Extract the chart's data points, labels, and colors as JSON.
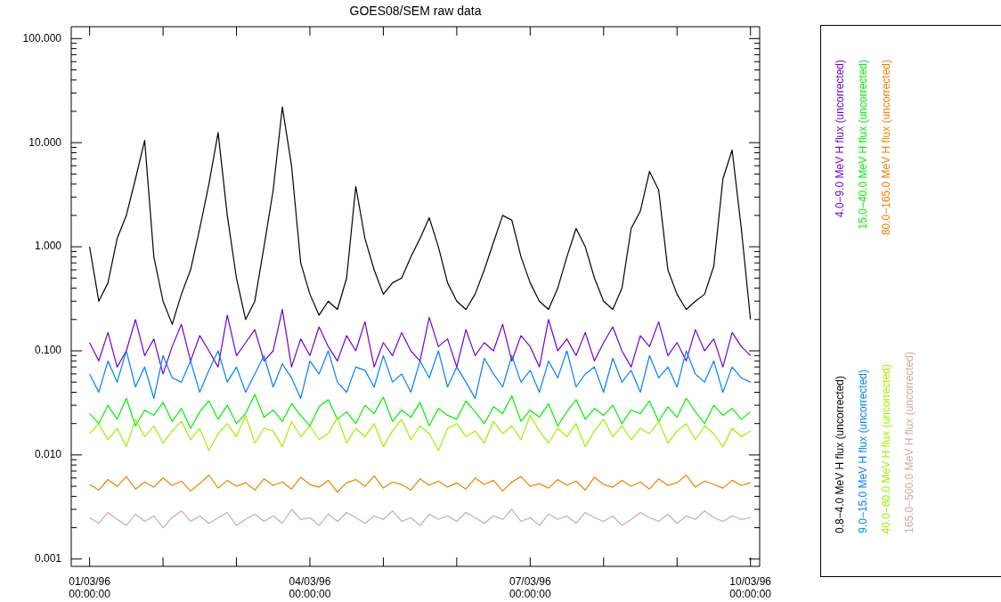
{
  "chart_data": {
    "type": "line",
    "title": "GOES08/SEM raw data",
    "legend": "right",
    "grid": false,
    "marker": "none",
    "line_style": "solid",
    "log": "y",
    "x": [
      "1996-03-01T00:00",
      "1996-03-01T03:00",
      "1996-03-01T06:00",
      "1996-03-01T09:00",
      "1996-03-01T12:00",
      "1996-03-01T15:00",
      "1996-03-01T18:00",
      "1996-03-01T21:00",
      "1996-03-02T00:00",
      "1996-03-02T03:00",
      "1996-03-02T06:00",
      "1996-03-02T09:00",
      "1996-03-02T12:00",
      "1996-03-02T15:00",
      "1996-03-02T18:00",
      "1996-03-02T21:00",
      "1996-03-03T00:00",
      "1996-03-03T03:00",
      "1996-03-03T06:00",
      "1996-03-03T09:00",
      "1996-03-03T12:00",
      "1996-03-03T15:00",
      "1996-03-03T18:00",
      "1996-03-03T21:00",
      "1996-03-04T00:00",
      "1996-03-04T03:00",
      "1996-03-04T06:00",
      "1996-03-04T09:00",
      "1996-03-04T12:00",
      "1996-03-04T15:00",
      "1996-03-04T18:00",
      "1996-03-04T21:00",
      "1996-03-05T00:00",
      "1996-03-05T03:00",
      "1996-03-05T06:00",
      "1996-03-05T09:00",
      "1996-03-05T12:00",
      "1996-03-05T15:00",
      "1996-03-05T18:00",
      "1996-03-05T21:00",
      "1996-03-06T00:00",
      "1996-03-06T03:00",
      "1996-03-06T06:00",
      "1996-03-06T09:00",
      "1996-03-06T12:00",
      "1996-03-06T15:00",
      "1996-03-06T18:00",
      "1996-03-06T21:00",
      "1996-03-07T00:00",
      "1996-03-07T03:00",
      "1996-03-07T06:00",
      "1996-03-07T09:00",
      "1996-03-07T12:00",
      "1996-03-07T15:00",
      "1996-03-07T18:00",
      "1996-03-07T21:00",
      "1996-03-08T00:00",
      "1996-03-08T03:00",
      "1996-03-08T06:00",
      "1996-03-08T09:00",
      "1996-03-08T12:00",
      "1996-03-08T15:00",
      "1996-03-08T18:00",
      "1996-03-08T21:00",
      "1996-03-09T00:00",
      "1996-03-09T03:00",
      "1996-03-09T06:00",
      "1996-03-09T09:00",
      "1996-03-09T12:00",
      "1996-03-09T15:00",
      "1996-03-09T18:00",
      "1996-03-09T21:00",
      "1996-03-10T00:00"
    ],
    "xlim": [
      "1996-02-29T18:00",
      "1996-03-10T03:00"
    ],
    "xticks": [
      {
        "value": "1996-03-01T00:00",
        "label": "01/03/96\n00:00:00"
      },
      {
        "value": "1996-03-02T00:00",
        "label": null
      },
      {
        "value": "1996-03-03T00:00",
        "label": null
      },
      {
        "value": "1996-03-04T00:00",
        "label": "04/03/96\n00:00:00"
      },
      {
        "value": "1996-03-05T00:00",
        "label": null
      },
      {
        "value": "1996-03-06T00:00",
        "label": null
      },
      {
        "value": "1996-03-07T00:00",
        "label": "07/03/96\n00:00:00"
      },
      {
        "value": "1996-03-08T00:00",
        "label": null
      },
      {
        "value": "1996-03-09T00:00",
        "label": null
      },
      {
        "value": "1996-03-10T00:00",
        "label": "10/03/96\n00:00:00"
      }
    ],
    "ylim": [
      0.00085,
      130
    ],
    "yticks": [
      {
        "value": 0.001,
        "label": "0.001"
      },
      {
        "value": 0.002,
        "label": null
      },
      {
        "value": 0.003,
        "label": null
      },
      {
        "value": 0.004,
        "label": null
      },
      {
        "value": 0.005,
        "label": null
      },
      {
        "value": 0.006,
        "label": null
      },
      {
        "value": 0.007,
        "label": null
      },
      {
        "value": 0.008,
        "label": null
      },
      {
        "value": 0.009,
        "label": null
      },
      {
        "value": 0.01,
        "label": "0.010"
      },
      {
        "value": 0.02,
        "label": null
      },
      {
        "value": 0.03,
        "label": null
      },
      {
        "value": 0.04,
        "label": null
      },
      {
        "value": 0.05,
        "label": null
      },
      {
        "value": 0.06,
        "label": null
      },
      {
        "value": 0.07,
        "label": null
      },
      {
        "value": 0.08,
        "label": null
      },
      {
        "value": 0.09,
        "label": null
      },
      {
        "value": 0.1,
        "label": "0.100"
      },
      {
        "value": 0.2,
        "label": null
      },
      {
        "value": 0.3,
        "label": null
      },
      {
        "value": 0.4,
        "label": null
      },
      {
        "value": 0.5,
        "label": null
      },
      {
        "value": 0.6,
        "label": null
      },
      {
        "value": 0.7,
        "label": null
      },
      {
        "value": 0.8,
        "label": null
      },
      {
        "value": 0.9,
        "label": null
      },
      {
        "value": 1,
        "label": "1.000"
      },
      {
        "value": 2,
        "label": null
      },
      {
        "value": 3,
        "label": null
      },
      {
        "value": 4,
        "label": null
      },
      {
        "value": 5,
        "label": null
      },
      {
        "value": 6,
        "label": null
      },
      {
        "value": 7,
        "label": null
      },
      {
        "value": 8,
        "label": null
      },
      {
        "value": 9,
        "label": null
      },
      {
        "value": 10,
        "label": "10.000"
      },
      {
        "value": 20,
        "label": null
      },
      {
        "value": 30,
        "label": null
      },
      {
        "value": 40,
        "label": null
      },
      {
        "value": 50,
        "label": null
      },
      {
        "value": 60,
        "label": null
      },
      {
        "value": 70,
        "label": null
      },
      {
        "value": 80,
        "label": null
      },
      {
        "value": 90,
        "label": null
      },
      {
        "value": 100,
        "label": "100.000"
      }
    ],
    "series": [
      {
        "name": "0.8−4.0 MeV H flux (uncorrected)",
        "color": "#000000",
        "values": [
          1.0,
          0.3,
          0.45,
          1.2,
          2.0,
          4.5,
          10.5,
          0.8,
          0.3,
          0.18,
          0.35,
          0.6,
          1.5,
          4.0,
          12.5,
          2.0,
          0.5,
          0.2,
          0.3,
          1.0,
          3.5,
          22,
          6.0,
          0.7,
          0.35,
          0.22,
          0.3,
          0.25,
          0.5,
          3.8,
          1.2,
          0.6,
          0.35,
          0.45,
          0.5,
          0.8,
          1.2,
          1.9,
          1.0,
          0.45,
          0.3,
          0.25,
          0.35,
          0.6,
          1.1,
          2.0,
          1.8,
          0.8,
          0.45,
          0.3,
          0.25,
          0.4,
          0.8,
          1.5,
          1.0,
          0.5,
          0.3,
          0.25,
          0.4,
          1.5,
          2.2,
          5.3,
          3.5,
          0.6,
          0.35,
          0.25,
          0.3,
          0.35,
          0.65,
          4.5,
          8.5,
          1.5,
          0.2
        ]
      },
      {
        "name": "4.0−9.0 MeV H flux (uncorrected)",
        "color": "#7000d0",
        "values": [
          0.12,
          0.08,
          0.15,
          0.07,
          0.1,
          0.2,
          0.09,
          0.13,
          0.06,
          0.11,
          0.18,
          0.08,
          0.14,
          0.1,
          0.07,
          0.22,
          0.09,
          0.12,
          0.16,
          0.08,
          0.1,
          0.25,
          0.07,
          0.13,
          0.09,
          0.17,
          0.11,
          0.08,
          0.14,
          0.1,
          0.19,
          0.07,
          0.12,
          0.09,
          0.15,
          0.1,
          0.08,
          0.21,
          0.11,
          0.13,
          0.07,
          0.16,
          0.09,
          0.12,
          0.1,
          0.18,
          0.08,
          0.14,
          0.11,
          0.07,
          0.2,
          0.1,
          0.13,
          0.09,
          0.15,
          0.08,
          0.12,
          0.17,
          0.1,
          0.07,
          0.14,
          0.11,
          0.19,
          0.09,
          0.12,
          0.08,
          0.16,
          0.1,
          0.13,
          0.07,
          0.15,
          0.11,
          0.09
        ]
      },
      {
        "name": "9.0−15.0 MeV H flux (uncorrected)",
        "color": "#0080ff",
        "values": [
          0.06,
          0.04,
          0.08,
          0.05,
          0.1,
          0.045,
          0.07,
          0.035,
          0.09,
          0.055,
          0.05,
          0.08,
          0.04,
          0.065,
          0.1,
          0.05,
          0.07,
          0.04,
          0.06,
          0.09,
          0.045,
          0.075,
          0.055,
          0.035,
          0.08,
          0.06,
          0.1,
          0.05,
          0.04,
          0.07,
          0.065,
          0.045,
          0.09,
          0.05,
          0.06,
          0.04,
          0.08,
          0.055,
          0.1,
          0.045,
          0.07,
          0.05,
          0.035,
          0.085,
          0.06,
          0.045,
          0.09,
          0.05,
          0.065,
          0.04,
          0.08,
          0.055,
          0.1,
          0.045,
          0.06,
          0.07,
          0.04,
          0.085,
          0.05,
          0.065,
          0.04,
          0.09,
          0.055,
          0.07,
          0.045,
          0.1,
          0.06,
          0.05,
          0.08,
          0.04,
          0.07,
          0.055,
          0.05
        ]
      },
      {
        "name": "15.0−40.0 MeV H flux (uncorrected)",
        "color": "#00f000",
        "values": [
          0.025,
          0.02,
          0.03,
          0.022,
          0.035,
          0.019,
          0.027,
          0.024,
          0.032,
          0.021,
          0.028,
          0.018,
          0.026,
          0.033,
          0.022,
          0.03,
          0.02,
          0.025,
          0.038,
          0.023,
          0.027,
          0.021,
          0.031,
          0.024,
          0.019,
          0.029,
          0.034,
          0.022,
          0.026,
          0.02,
          0.03,
          0.025,
          0.036,
          0.021,
          0.027,
          0.023,
          0.032,
          0.019,
          0.028,
          0.024,
          0.022,
          0.033,
          0.026,
          0.02,
          0.029,
          0.025,
          0.037,
          0.021,
          0.027,
          0.023,
          0.031,
          0.019,
          0.026,
          0.034,
          0.022,
          0.028,
          0.024,
          0.03,
          0.02,
          0.027,
          0.025,
          0.033,
          0.021,
          0.029,
          0.023,
          0.035,
          0.026,
          0.02,
          0.03,
          0.024,
          0.028,
          0.022,
          0.026
        ]
      },
      {
        "name": "40.0−80.0 MeV H flux (uncorrected)",
        "color": "#a0f000",
        "values": [
          0.016,
          0.02,
          0.014,
          0.018,
          0.012,
          0.022,
          0.015,
          0.019,
          0.013,
          0.017,
          0.021,
          0.014,
          0.018,
          0.011,
          0.016,
          0.02,
          0.015,
          0.024,
          0.013,
          0.018,
          0.017,
          0.012,
          0.021,
          0.015,
          0.019,
          0.014,
          0.016,
          0.023,
          0.013,
          0.018,
          0.015,
          0.02,
          0.012,
          0.017,
          0.022,
          0.014,
          0.019,
          0.016,
          0.011,
          0.018,
          0.02,
          0.015,
          0.017,
          0.013,
          0.021,
          0.016,
          0.019,
          0.014,
          0.024,
          0.017,
          0.013,
          0.018,
          0.015,
          0.02,
          0.012,
          0.017,
          0.022,
          0.015,
          0.019,
          0.014,
          0.018,
          0.016,
          0.021,
          0.013,
          0.017,
          0.02,
          0.014,
          0.019,
          0.016,
          0.012,
          0.018,
          0.015,
          0.017
        ]
      },
      {
        "name": "80.0−165.0 MeV H flux (uncorrected)",
        "color": "#f08000",
        "values": [
          0.0052,
          0.0046,
          0.0058,
          0.005,
          0.0062,
          0.0047,
          0.0055,
          0.0049,
          0.006,
          0.0051,
          0.0056,
          0.0045,
          0.0053,
          0.0064,
          0.0048,
          0.0057,
          0.005,
          0.0054,
          0.0046,
          0.0059,
          0.0051,
          0.0055,
          0.0047,
          0.0061,
          0.0052,
          0.0049,
          0.0057,
          0.0044,
          0.0054,
          0.0058,
          0.005,
          0.0063,
          0.0048,
          0.0055,
          0.0052,
          0.0046,
          0.0059,
          0.0051,
          0.0056,
          0.0049,
          0.0054,
          0.0047,
          0.006,
          0.0052,
          0.0057,
          0.0045,
          0.0055,
          0.0062,
          0.005,
          0.0053,
          0.0048,
          0.0058,
          0.0051,
          0.0056,
          0.0046,
          0.0061,
          0.0052,
          0.0049,
          0.0057,
          0.005,
          0.0055,
          0.0047,
          0.0059,
          0.0051,
          0.0054,
          0.0064,
          0.0049,
          0.0056,
          0.0052,
          0.0048,
          0.0057,
          0.0051,
          0.0054
        ]
      },
      {
        "name": "165.0−500.0 MeV H flux (uncorrected)",
        "color": "#d0a8a8",
        "values": [
          0.0025,
          0.0022,
          0.0028,
          0.0024,
          0.0021,
          0.0027,
          0.0023,
          0.0026,
          0.002,
          0.0025,
          0.0029,
          0.0023,
          0.0026,
          0.0022,
          0.0025,
          0.0028,
          0.0021,
          0.0024,
          0.0027,
          0.0023,
          0.0026,
          0.0022,
          0.003,
          0.0024,
          0.0025,
          0.0021,
          0.0027,
          0.0023,
          0.0028,
          0.0025,
          0.0022,
          0.0026,
          0.0024,
          0.0029,
          0.0023,
          0.0025,
          0.0021,
          0.0027,
          0.0024,
          0.0026,
          0.0023,
          0.0028,
          0.0025,
          0.0022,
          0.0026,
          0.0024,
          0.003,
          0.0023,
          0.0025,
          0.0021,
          0.0027,
          0.0024,
          0.0026,
          0.0022,
          0.0028,
          0.0025,
          0.0023,
          0.0026,
          0.0021,
          0.0024,
          0.0028,
          0.0025,
          0.0023,
          0.0027,
          0.0022,
          0.0026,
          0.0024,
          0.0029,
          0.0025,
          0.0023,
          0.0026,
          0.0024,
          0.0025
        ]
      }
    ]
  }
}
